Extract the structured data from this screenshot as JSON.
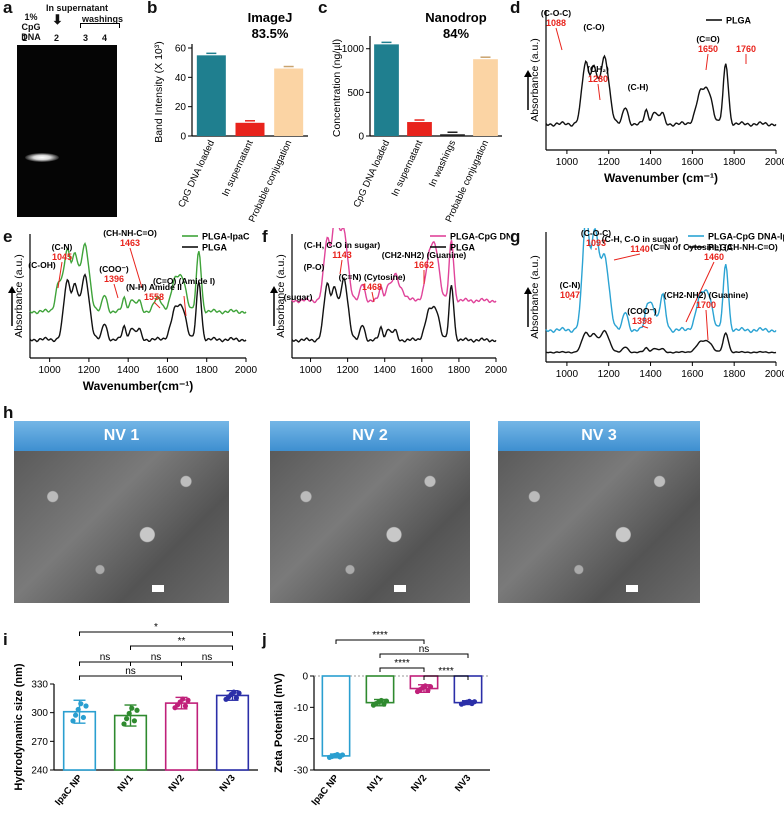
{
  "labels": {
    "a": "a",
    "b": "b",
    "c": "c",
    "d": "d",
    "e": "e",
    "f": "f",
    "g": "g",
    "h": "h",
    "i": "i",
    "j": "j"
  },
  "panel_a": {
    "lane_header": "1% CpG DNA",
    "supernatant_header": "In supernatant",
    "washings_header": "washings",
    "lanes": [
      "1",
      "2",
      "3",
      "4"
    ]
  },
  "chart_data": [
    {
      "id": "b",
      "type": "bar",
      "title": "ImageJ",
      "subtitle": "83.5%",
      "ylabel": "Band Intensity (X 10³)",
      "ylim": [
        0,
        60
      ],
      "yticks": [
        0,
        20,
        40,
        60
      ],
      "categories": [
        "CpG DNA loaded",
        "In supernatant",
        "Probable conjugation"
      ],
      "values": [
        55,
        9,
        46
      ],
      "colors": [
        "#1f7f8f",
        "#e8231c",
        "#fbd4a4"
      ]
    },
    {
      "id": "c",
      "type": "bar",
      "title": "Nanodrop",
      "subtitle": "84%",
      "ylabel": "Concentration (ng/µl)",
      "ylim": [
        0,
        1100
      ],
      "yticks": [
        0,
        500,
        1000
      ],
      "categories": [
        "CpG DNA loaded",
        "In supernatant",
        "In washings",
        "Probable conjugation"
      ],
      "values": [
        1050,
        160,
        20,
        880
      ],
      "colors": [
        "#1f7f8f",
        "#e8231c",
        "#222222",
        "#fbd4a4"
      ]
    },
    {
      "id": "d",
      "type": "line",
      "xlabel": "Wavenumber (cm⁻¹)",
      "ylabel": "Absorbance (a.u.)",
      "xlim": [
        900,
        2000
      ],
      "xticks": [
        1000,
        1200,
        1400,
        1600,
        1800,
        2000
      ],
      "legend": [
        "PLGA"
      ],
      "annotations": [
        {
          "group": "(C-O-C)",
          "value": "1088"
        },
        {
          "group": "(C-O)",
          "value": ""
        },
        {
          "group": "(CH₂)",
          "value": "1280"
        },
        {
          "group": "(C-H)",
          "value": ""
        },
        {
          "group": "(C=O)",
          "value": "1650"
        },
        {
          "group": "",
          "value": "1760"
        }
      ]
    },
    {
      "id": "e",
      "type": "line",
      "xlabel": "Wavenumber(cm⁻¹)",
      "ylabel": "Absorbance (a.u.)",
      "xlim": [
        900,
        2000
      ],
      "xticks": [
        1000,
        1200,
        1400,
        1600,
        1800,
        2000
      ],
      "legend": [
        "PLGA-IpaC",
        "PLGA"
      ],
      "annotations": [
        {
          "group": "(C-N)",
          "value": "1045"
        },
        {
          "group": "(C-OH)",
          "value": ""
        },
        {
          "group": "(COO⁻)",
          "value": "1396"
        },
        {
          "group": "(CH-NH-C=O)",
          "value": "1463"
        },
        {
          "group": "(N-H) Amide II",
          "value": "1558"
        },
        {
          "group": "(C=O) (Amide I)",
          "value": ""
        }
      ]
    },
    {
      "id": "f",
      "type": "line",
      "ylabel": "Absorbance (a.u.)",
      "xlim": [
        900,
        2000
      ],
      "xticks": [
        1000,
        1200,
        1400,
        1600,
        1800,
        2000
      ],
      "legend": [
        "PLGA-CpG DNA",
        "PLGA"
      ],
      "annotations": [
        {
          "group": "(C-H, C-O in sugar)",
          "value": "1143"
        },
        {
          "group": "(P-O)",
          "value": ""
        },
        {
          "group": "(sugar)",
          "value": ""
        },
        {
          "group": "(C=N) (Cytosine)",
          "value": "1468"
        },
        {
          "group": "(CH2-NH2) (Guanine)",
          "value": "1662"
        }
      ]
    },
    {
      "id": "g",
      "type": "line",
      "ylabel": "Absorbance (a.u.)",
      "xlim": [
        900,
        2000
      ],
      "xticks": [
        1000,
        1200,
        1400,
        1600,
        1800,
        2000
      ],
      "legend": [
        "PLGA-CpG DNA-IpaC",
        "PLGA"
      ],
      "annotations": [
        {
          "group": "(C-O-C)",
          "value": "1093"
        },
        {
          "group": "(C-H, C-O in sugar)",
          "value": "1140"
        },
        {
          "group": "(C-N)",
          "value": "1047"
        },
        {
          "group": "(C=N of Cytosine) (CH-NH-C=O)",
          "value": "1460"
        },
        {
          "group": "(COO⁻)",
          "value": "1398"
        },
        {
          "group": "(CH2-NH2) (Guanine)",
          "value": "1700"
        }
      ]
    },
    {
      "id": "i",
      "type": "bar",
      "ylabel": "Hydrodynamic size (nm)",
      "ylim": [
        240,
        330
      ],
      "yticks": [
        240,
        270,
        300,
        330
      ],
      "categories": [
        "IpaC NP",
        "NV1",
        "NV2",
        "NV3"
      ],
      "values": [
        301,
        297,
        310,
        318
      ],
      "errors": [
        12,
        11,
        6,
        5
      ],
      "colors": [
        "#2a9fd0",
        "#2f8a2f",
        "#c0207a",
        "#2b2fa8"
      ],
      "significance": [
        {
          "pair": [
            "IpaC NP",
            "NV3"
          ],
          "label": "*"
        },
        {
          "pair": [
            "NV1",
            "NV3"
          ],
          "label": "**"
        },
        {
          "pair": [
            "IpaC NP",
            "NV1"
          ],
          "label": "ns"
        },
        {
          "pair": [
            "NV1",
            "NV2"
          ],
          "label": "ns"
        },
        {
          "pair": [
            "NV2",
            "NV3"
          ],
          "label": "ns"
        },
        {
          "pair": [
            "IpaC NP",
            "NV2"
          ],
          "label": "ns"
        }
      ]
    },
    {
      "id": "j",
      "type": "bar",
      "ylabel": "Zeta Potential (mV)",
      "ylim": [
        -30,
        0
      ],
      "yticks": [
        0,
        -10,
        -20,
        -30
      ],
      "categories": [
        "IpaC NP",
        "NV1",
        "NV2",
        "NV3"
      ],
      "values": [
        -25.5,
        -8.5,
        -4.0,
        -8.5
      ],
      "errors": [
        0.6,
        1.0,
        1.2,
        0.6
      ],
      "colors": [
        "#2a9fd0",
        "#2f8a2f",
        "#c0207a",
        "#2b2fa8"
      ],
      "significance": [
        {
          "pair": [
            "IpaC NP",
            "NV2"
          ],
          "label": "****"
        },
        {
          "pair": [
            "NV1",
            "NV3"
          ],
          "label": "ns"
        },
        {
          "pair": [
            "NV1",
            "NV2"
          ],
          "label": "****"
        },
        {
          "pair": [
            "NV2",
            "NV3"
          ],
          "label": "****"
        }
      ]
    }
  ],
  "panel_h": {
    "titles": [
      "NV 1",
      "NV 2",
      "NV 3"
    ]
  }
}
